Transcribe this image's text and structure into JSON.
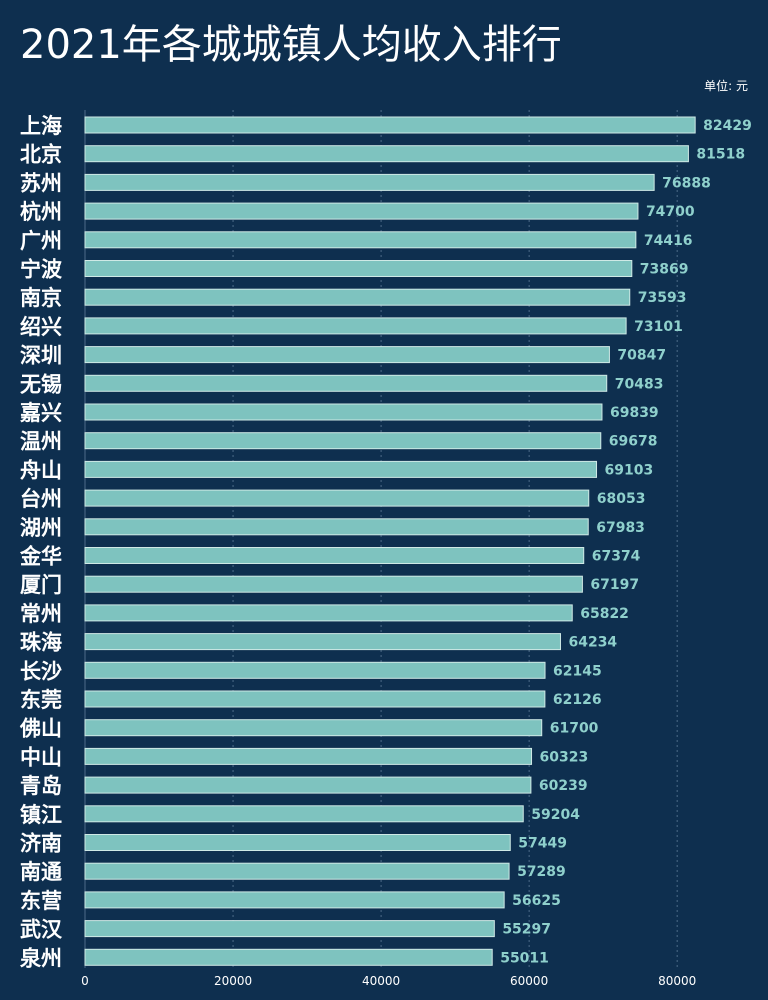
{
  "colors": {
    "background": "#0e2f4f",
    "bar": "#7ec3bf",
    "bar_border": "#cfe9e6",
    "value_label": "#8fd0cc",
    "grid": "#4d6b88"
  },
  "chart_data": {
    "type": "bar",
    "orientation": "horizontal",
    "title": "2021年各城城镇人均收入排行",
    "unit": "单位: 元",
    "categories": [
      "上海",
      "北京",
      "苏州",
      "杭州",
      "广州",
      "宁波",
      "南京",
      "绍兴",
      "深圳",
      "无锡",
      "嘉兴",
      "温州",
      "舟山",
      "台州",
      "湖州",
      "金华",
      "厦门",
      "常州",
      "珠海",
      "长沙",
      "东莞",
      "佛山",
      "中山",
      "青岛",
      "镇江",
      "济南",
      "南通",
      "东营",
      "武汉",
      "泉州"
    ],
    "values": [
      82429,
      81518,
      76888,
      74700,
      74416,
      73869,
      73593,
      73101,
      70847,
      70483,
      69839,
      69678,
      69103,
      68053,
      67983,
      67374,
      67197,
      65822,
      64234,
      62145,
      62126,
      61700,
      60323,
      60239,
      59204,
      57449,
      57289,
      56625,
      55297,
      55011
    ],
    "xlim": [
      0,
      87000
    ],
    "xticks": [
      0,
      20000,
      40000,
      60000,
      80000
    ],
    "grid": true
  }
}
